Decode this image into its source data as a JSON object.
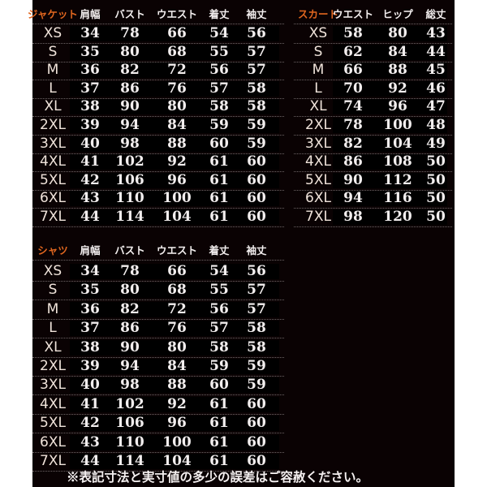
{
  "tables": {
    "jacket": {
      "title": "ジャケット",
      "headers": [
        "肩幅",
        "バスト",
        "ウエスト",
        "着丈",
        "袖丈"
      ],
      "rows": [
        {
          "size": "XS",
          "values": [
            "34",
            "78",
            "66",
            "54",
            "56"
          ]
        },
        {
          "size": "S",
          "values": [
            "35",
            "80",
            "68",
            "55",
            "57"
          ]
        },
        {
          "size": "M",
          "values": [
            "36",
            "82",
            "72",
            "56",
            "57"
          ]
        },
        {
          "size": "L",
          "values": [
            "37",
            "86",
            "76",
            "57",
            "58"
          ]
        },
        {
          "size": "XL",
          "values": [
            "38",
            "90",
            "80",
            "58",
            "58"
          ]
        },
        {
          "size": "2XL",
          "values": [
            "39",
            "94",
            "84",
            "59",
            "59"
          ]
        },
        {
          "size": "3XL",
          "values": [
            "40",
            "98",
            "88",
            "60",
            "59"
          ]
        },
        {
          "size": "4XL",
          "values": [
            "41",
            "102",
            "92",
            "61",
            "60"
          ]
        },
        {
          "size": "5XL",
          "values": [
            "42",
            "106",
            "96",
            "61",
            "60"
          ]
        },
        {
          "size": "6XL",
          "values": [
            "43",
            "110",
            "100",
            "61",
            "60"
          ]
        },
        {
          "size": "7XL",
          "values": [
            "44",
            "114",
            "104",
            "61",
            "60"
          ]
        }
      ]
    },
    "skirt": {
      "title": "スカート",
      "headers": [
        "ウエスト",
        "ヒップ",
        "総丈"
      ],
      "rows": [
        {
          "size": "XS",
          "values": [
            "58",
            "80",
            "43"
          ]
        },
        {
          "size": "S",
          "values": [
            "62",
            "84",
            "44"
          ]
        },
        {
          "size": "M",
          "values": [
            "66",
            "88",
            "45"
          ]
        },
        {
          "size": "L",
          "values": [
            "70",
            "92",
            "46"
          ]
        },
        {
          "size": "XL",
          "values": [
            "74",
            "96",
            "47"
          ]
        },
        {
          "size": "2XL",
          "values": [
            "78",
            "100",
            "48"
          ]
        },
        {
          "size": "3XL",
          "values": [
            "82",
            "104",
            "49"
          ]
        },
        {
          "size": "4XL",
          "values": [
            "86",
            "108",
            "50"
          ]
        },
        {
          "size": "5XL",
          "values": [
            "90",
            "112",
            "50"
          ]
        },
        {
          "size": "6XL",
          "values": [
            "94",
            "116",
            "50"
          ]
        },
        {
          "size": "7XL",
          "values": [
            "98",
            "120",
            "50"
          ]
        }
      ]
    },
    "shirt": {
      "title": "シャツ",
      "headers": [
        "肩幅",
        "バスト",
        "ウエスト",
        "着丈",
        "袖丈"
      ],
      "rows": [
        {
          "size": "XS",
          "values": [
            "34",
            "78",
            "66",
            "54",
            "56"
          ]
        },
        {
          "size": "S",
          "values": [
            "35",
            "80",
            "68",
            "55",
            "57"
          ]
        },
        {
          "size": "M",
          "values": [
            "36",
            "82",
            "72",
            "56",
            "57"
          ]
        },
        {
          "size": "L",
          "values": [
            "37",
            "86",
            "76",
            "57",
            "58"
          ]
        },
        {
          "size": "XL",
          "values": [
            "38",
            "90",
            "80",
            "58",
            "58"
          ]
        },
        {
          "size": "2XL",
          "values": [
            "39",
            "94",
            "84",
            "59",
            "59"
          ]
        },
        {
          "size": "3XL",
          "values": [
            "40",
            "98",
            "88",
            "60",
            "59"
          ]
        },
        {
          "size": "4XL",
          "values": [
            "41",
            "102",
            "92",
            "61",
            "60"
          ]
        },
        {
          "size": "5XL",
          "values": [
            "42",
            "106",
            "96",
            "61",
            "60"
          ]
        },
        {
          "size": "6XL",
          "values": [
            "43",
            "110",
            "100",
            "61",
            "60"
          ]
        },
        {
          "size": "7XL",
          "values": [
            "44",
            "114",
            "104",
            "61",
            "60"
          ]
        }
      ]
    }
  },
  "note": "※表記寸法と実寸値の多少の誤差はご容赦ください。",
  "colors": {
    "background": "#0a0203",
    "title": "#e0661f",
    "text": "#f2eeee"
  }
}
